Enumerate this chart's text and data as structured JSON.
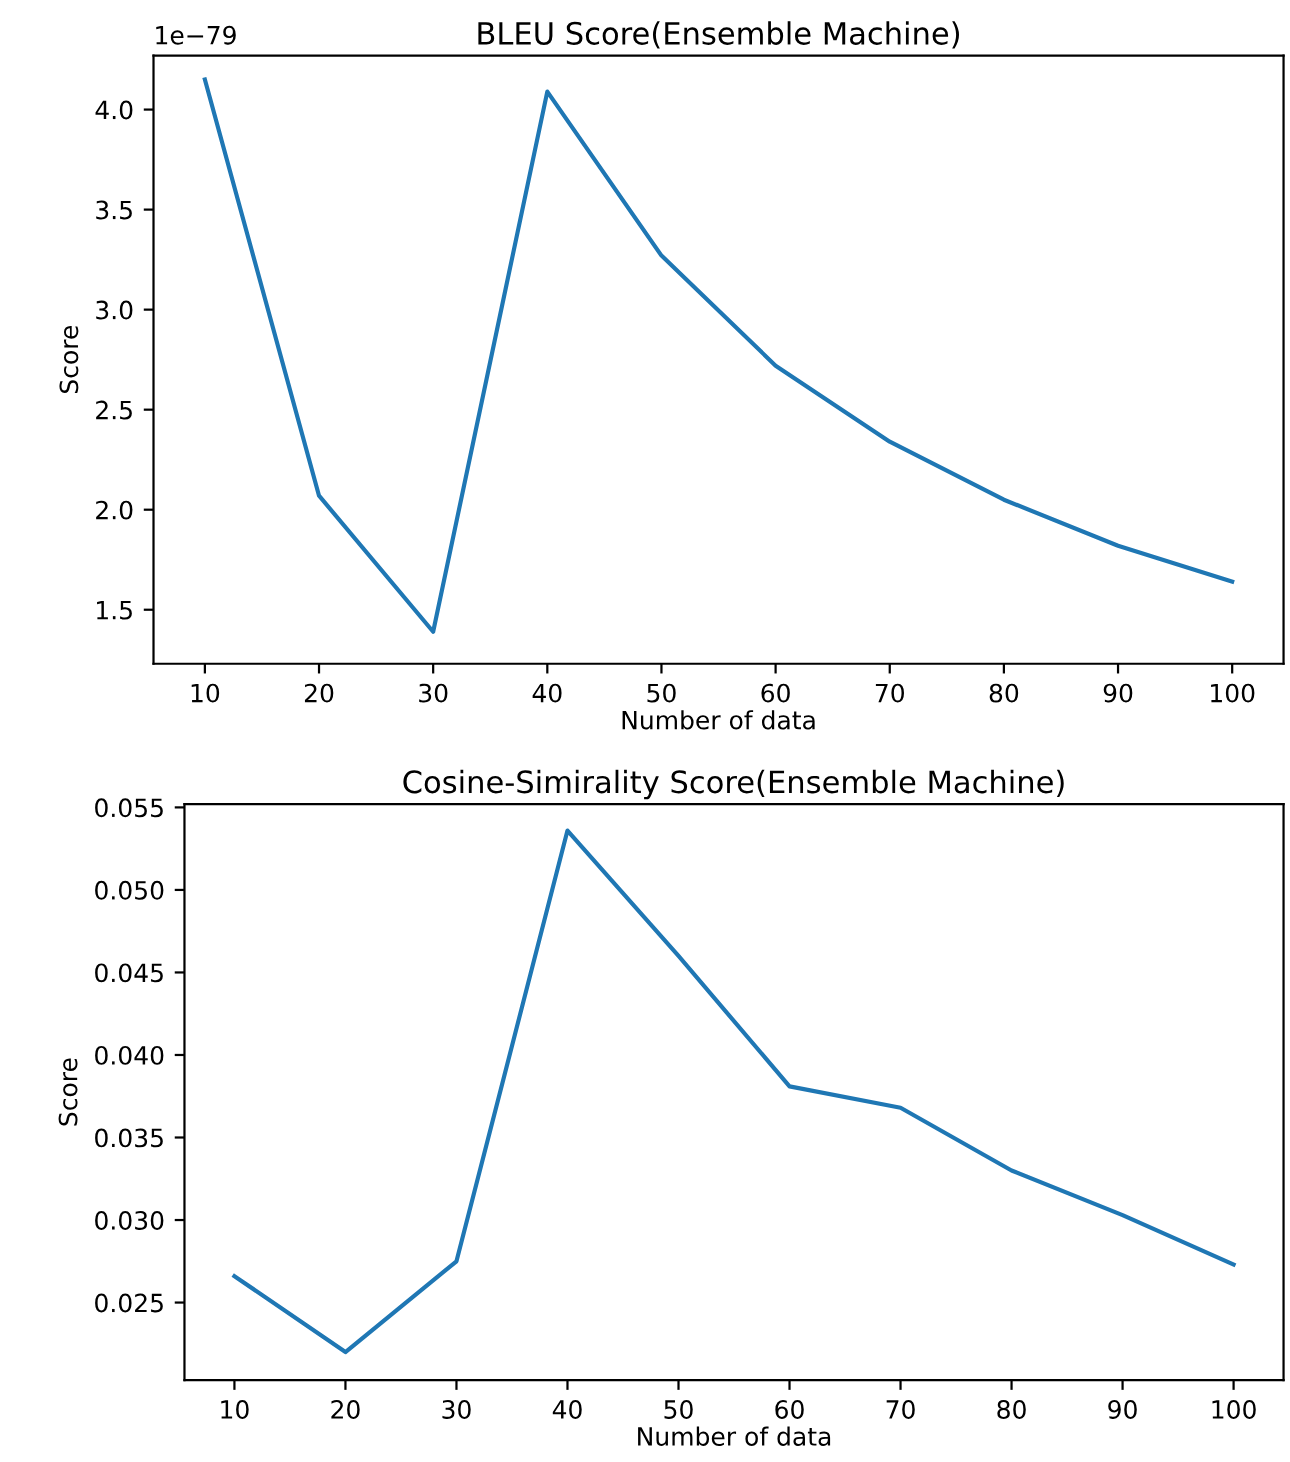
{
  "chart_data": [
    {
      "type": "line",
      "title": "BLEU Score(Ensemble Machine)",
      "xlabel": "Number of data",
      "ylabel": "Score",
      "annotations": [
        "1e−79"
      ],
      "x": [
        10,
        20,
        30,
        40,
        50,
        60,
        70,
        80,
        90,
        100
      ],
      "series": [
        {
          "color": "#1f77b4",
          "values": [
            4.15,
            2.07,
            1.39,
            4.09,
            3.27,
            2.72,
            2.34,
            2.05,
            1.82,
            1.64
          ]
        }
      ],
      "xlim": [
        5.5,
        104.5
      ],
      "ylim": [
        1.23,
        4.27
      ],
      "xticks": [
        10,
        20,
        30,
        40,
        50,
        60,
        70,
        80,
        90,
        100
      ],
      "yticks": [
        {
          "value": 1.5,
          "label": "1.5"
        },
        {
          "value": 2.0,
          "label": "2.0"
        },
        {
          "value": 2.5,
          "label": "2.5"
        },
        {
          "value": 3.0,
          "label": "3.0"
        },
        {
          "value": 3.5,
          "label": "3.5"
        },
        {
          "value": 4.0,
          "label": "4.0"
        }
      ],
      "grid": false,
      "legend": false
    },
    {
      "type": "line",
      "title": "Cosine-Simirality Score(Ensemble Machine)",
      "xlabel": "Number of data",
      "ylabel": "Score",
      "x": [
        10,
        20,
        30,
        40,
        50,
        60,
        70,
        80,
        90,
        100
      ],
      "series": [
        {
          "color": "#1f77b4",
          "values": [
            0.0266,
            0.022,
            0.0275,
            0.0536,
            0.046,
            0.0381,
            0.0368,
            0.033,
            0.0303,
            0.0273
          ]
        }
      ],
      "xlim": [
        5.5,
        104.5
      ],
      "ylim": [
        0.0203,
        0.0552
      ],
      "xticks": [
        10,
        20,
        30,
        40,
        50,
        60,
        70,
        80,
        90,
        100
      ],
      "yticks": [
        {
          "value": 0.025,
          "label": "0.025"
        },
        {
          "value": 0.03,
          "label": "0.030"
        },
        {
          "value": 0.035,
          "label": "0.035"
        },
        {
          "value": 0.04,
          "label": "0.040"
        },
        {
          "value": 0.045,
          "label": "0.045"
        },
        {
          "value": 0.05,
          "label": "0.050"
        },
        {
          "value": 0.055,
          "label": "0.055"
        }
      ],
      "grid": false,
      "legend": false
    }
  ]
}
